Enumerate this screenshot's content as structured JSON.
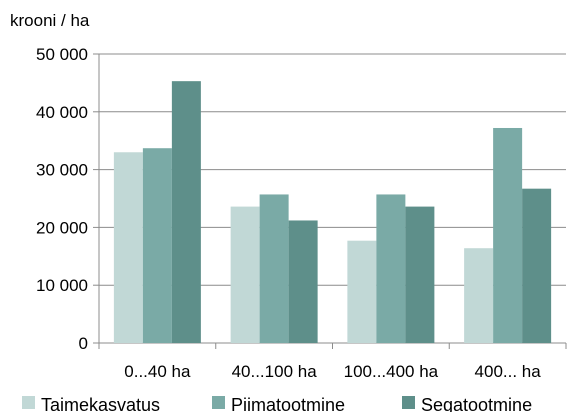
{
  "chart_data": {
    "type": "bar",
    "ylabel": "krooni / ha",
    "categories": [
      "0...40 ha",
      "40...100 ha",
      "100...400 ha",
      "400... ha"
    ],
    "series": [
      {
        "name": "Taimekasvatus",
        "color": "#c1d8d6",
        "values": [
          33000,
          23600,
          17700,
          16400
        ]
      },
      {
        "name": "Piimatootmine",
        "color": "#7aaaa6",
        "values": [
          33700,
          25700,
          25700,
          37200
        ]
      },
      {
        "name": "Segatootmine",
        "color": "#5e8f8a",
        "values": [
          45300,
          21200,
          23600,
          26700
        ]
      }
    ],
    "ylim": [
      0,
      50000
    ],
    "yticks": [
      0,
      10000,
      20000,
      30000,
      40000,
      50000
    ],
    "ytick_labels": [
      "0",
      "10 000",
      "20 000",
      "30 000",
      "40 000",
      "50 000"
    ],
    "grid": true,
    "legend_position": "bottom"
  }
}
